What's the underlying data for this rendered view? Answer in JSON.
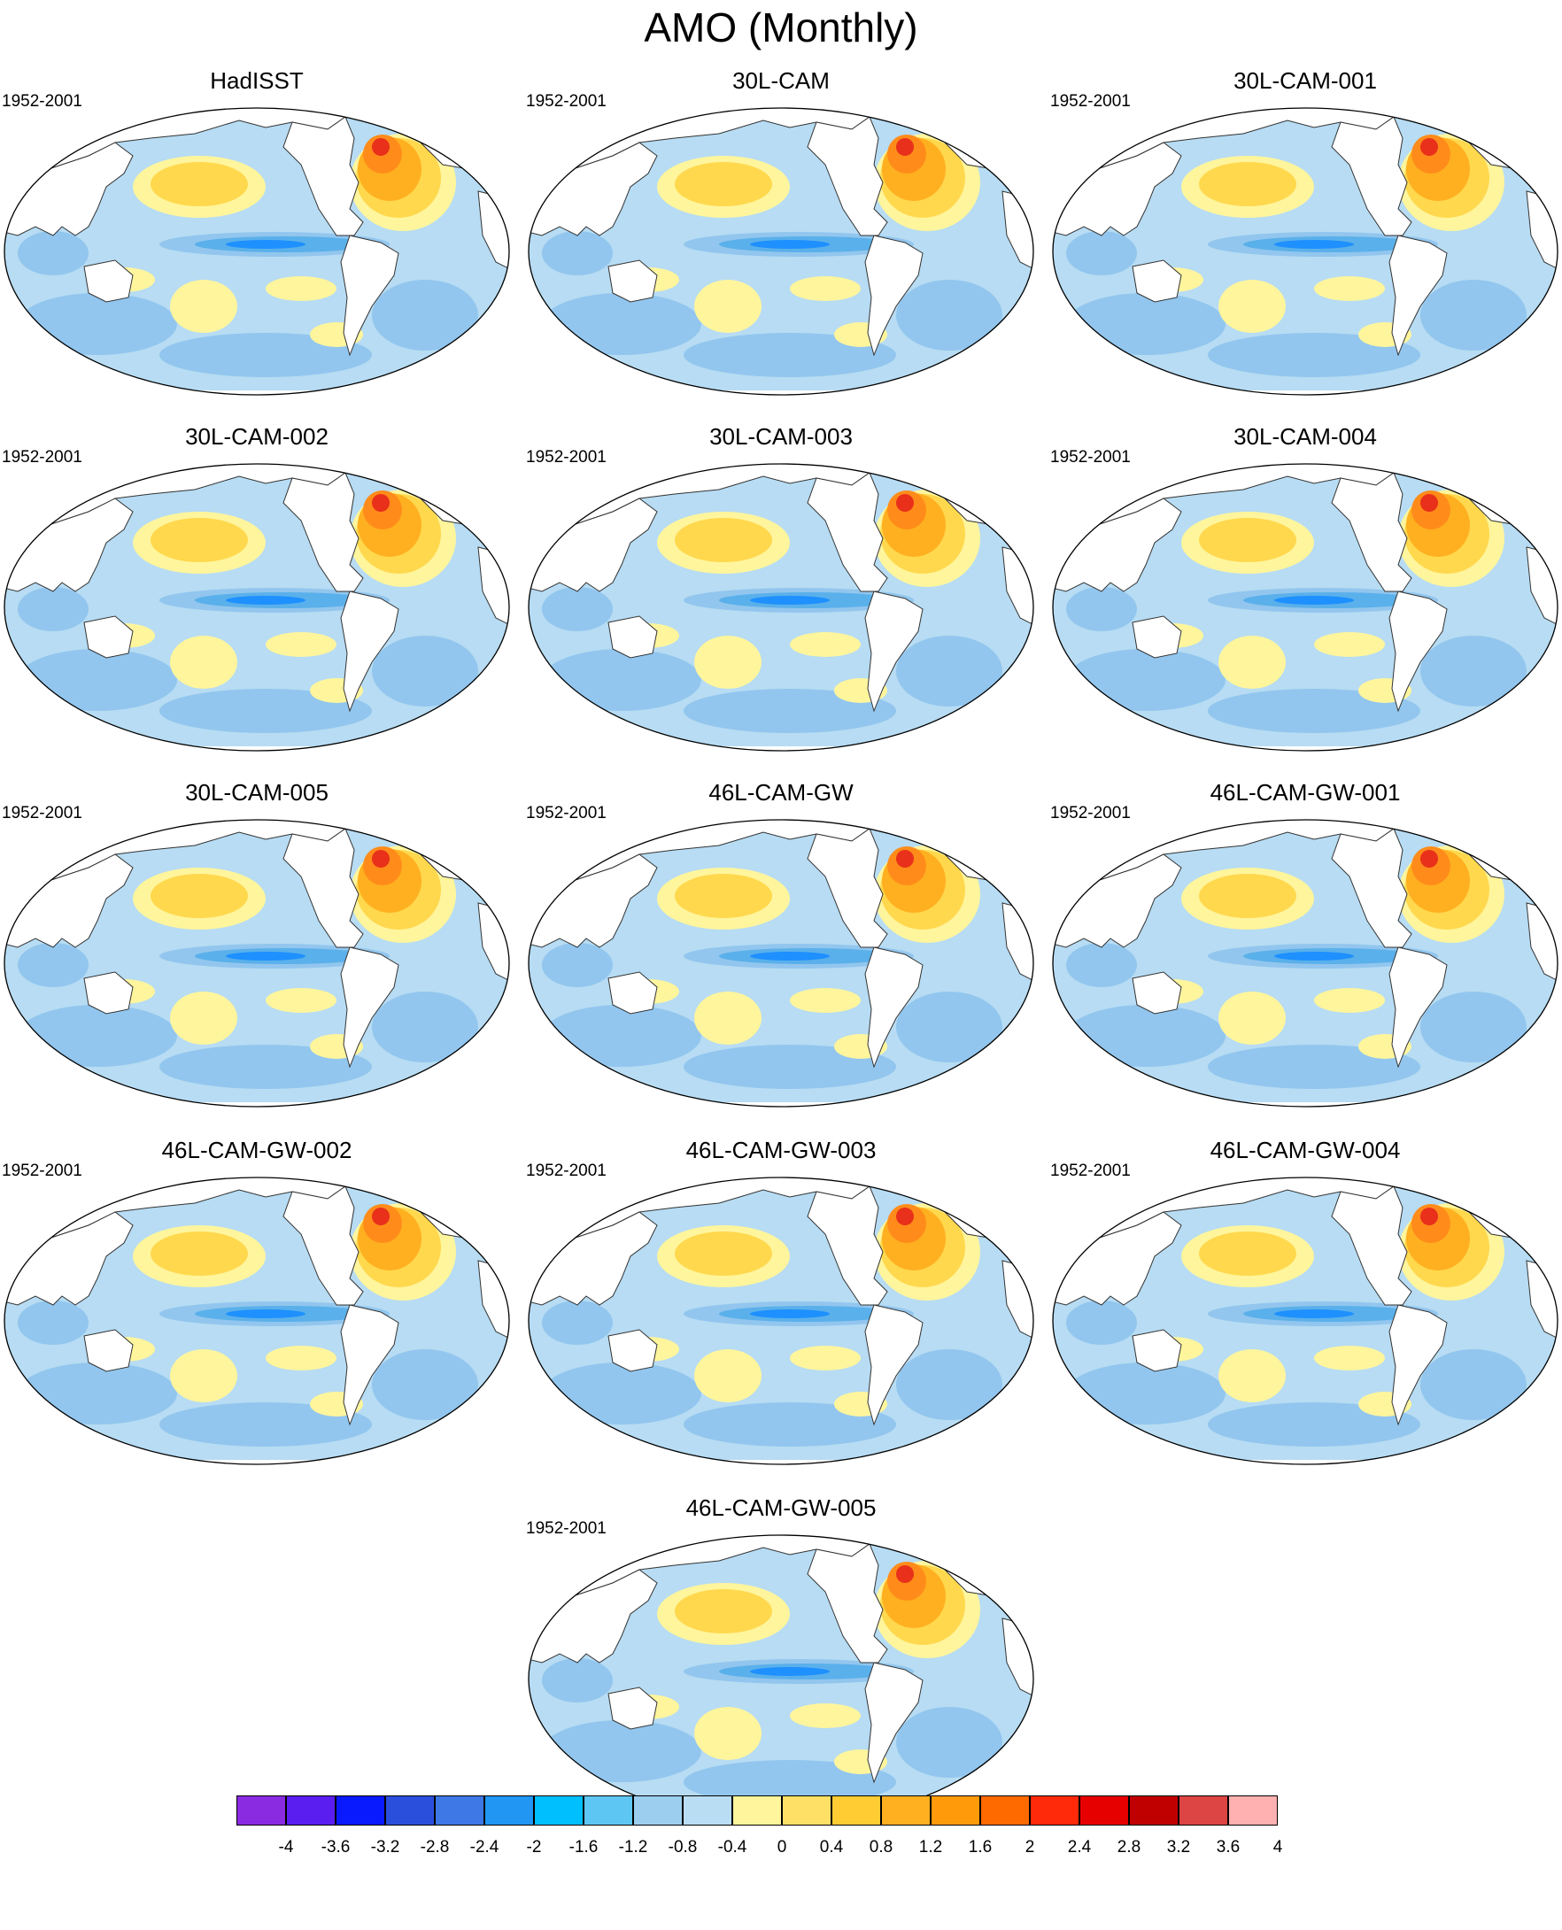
{
  "title": "AMO (Monthly)",
  "colors": {
    "land": "#ffffff",
    "coast": "#333333",
    "light_blue": "#b7dcf3",
    "mid_blue": "#92c6ee",
    "blue": "#5ab0ea",
    "deep_blue": "#1e90ff",
    "yellow": "#fff59d",
    "gold": "#ffd84d",
    "orange": "#ffb020",
    "dark_orange": "#ff8c1a",
    "red": "#e8301a"
  },
  "panels": [
    {
      "title": "HadISST",
      "period": "1952-2001"
    },
    {
      "title": "30L-CAM",
      "period": "1952-2001"
    },
    {
      "title": "30L-CAM-001",
      "period": "1952-2001"
    },
    {
      "title": "30L-CAM-002",
      "period": "1952-2001"
    },
    {
      "title": "30L-CAM-003",
      "period": "1952-2001"
    },
    {
      "title": "30L-CAM-004",
      "period": "1952-2001"
    },
    {
      "title": "30L-CAM-005",
      "period": "1952-2001"
    },
    {
      "title": "46L-CAM-GW",
      "period": "1952-2001"
    },
    {
      "title": "46L-CAM-GW-001",
      "period": "1952-2001"
    },
    {
      "title": "46L-CAM-GW-002",
      "period": "1952-2001"
    },
    {
      "title": "46L-CAM-GW-003",
      "period": "1952-2001"
    },
    {
      "title": "46L-CAM-GW-004",
      "period": "1952-2001"
    },
    {
      "title": "46L-CAM-GW-005",
      "period": "1952-2001"
    }
  ],
  "colorbar": {
    "colors": [
      "#8a2be2",
      "#5a1ef0",
      "#0a1aff",
      "#2a4fdc",
      "#3d78e6",
      "#2196f3",
      "#00bfff",
      "#5ec6f2",
      "#9ccfef",
      "#b9def3",
      "#fff59d",
      "#ffe066",
      "#ffcc33",
      "#ffb020",
      "#ff9a0a",
      "#ff6a00",
      "#ff2a0a",
      "#e60000",
      "#c00000",
      "#dd4444",
      "#ffb0b0"
    ],
    "labels": [
      "-4",
      "-3.6",
      "-3.2",
      "-2.8",
      "-2.4",
      "-2",
      "-1.6",
      "-1.2",
      "-0.8",
      "-0.4",
      "0",
      "0.4",
      "0.8",
      "1.2",
      "1.6",
      "2",
      "2.4",
      "2.8",
      "3.2",
      "3.6",
      "4"
    ]
  }
}
